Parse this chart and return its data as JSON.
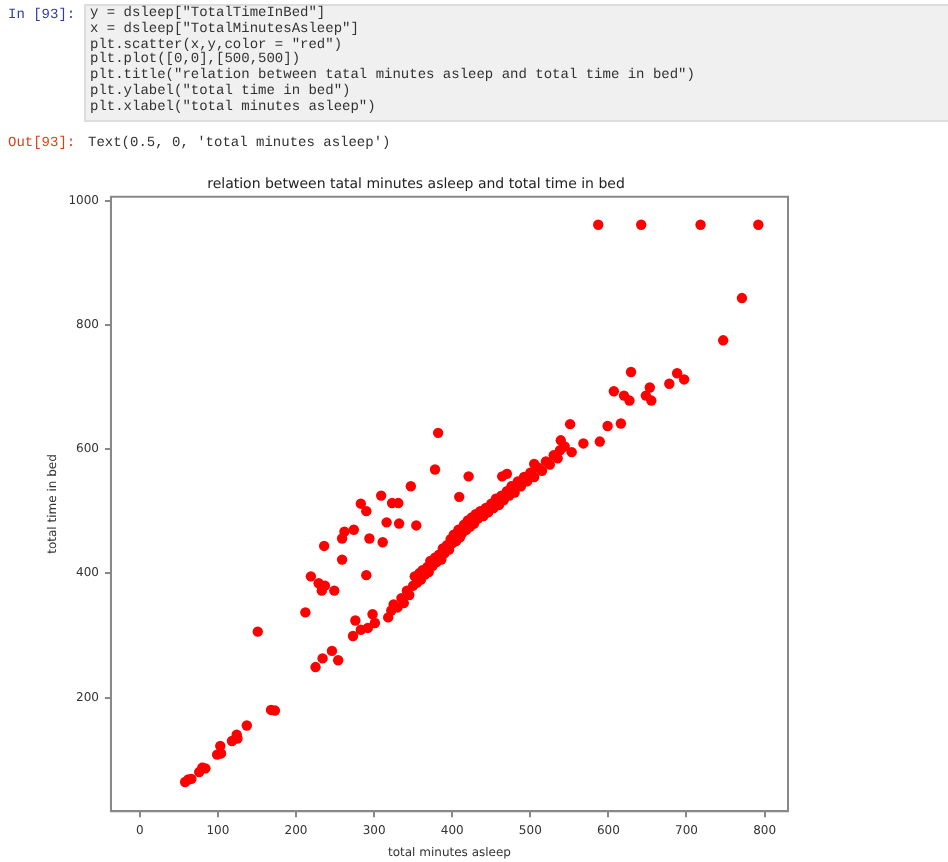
{
  "chart_data": {
    "type": "scatter",
    "title": "relation between tatal minutes asleep and total time in bed",
    "xlabel": "total minutes asleep",
    "ylabel": "total time in bed",
    "annotations": [
      "In [93]:",
      "y = dsleep[\"TotalTimeInBed\"]",
      "x = dsleep[\"TotalMinutesAsleep\"]",
      "plt.scatter(x,y,color = \"red\")",
      "plt.plot([0,0],[500,500])",
      "plt.title(\"relation between tatal minutes asleep and total time in bed\")",
      "plt.ylabel(\"total time in bed\")",
      "plt.xlabel(\"total minutes asleep\")",
      "Out[93]:",
      "Text(0.5, 0, 'total minutes asleep')"
    ],
    "series": [
      {
        "color": "#ff0000",
        "x": [
          587,
          642,
          718,
          792,
          771,
          747,
          629,
          607,
          620,
          627,
          653,
          648,
          655,
          678,
          688,
          697,
          599,
          616,
          589,
          551,
          568,
          539,
          553,
          544,
          505,
          421,
          409,
          382,
          378,
          347,
          283,
          290,
          309,
          323,
          331,
          316,
          332,
          354,
          294,
          311,
          274,
          262,
          259,
          236,
          259,
          219,
          229,
          237,
          233,
          249,
          290,
          212,
          151,
          273,
          276,
          283,
          292,
          301,
          298,
          225,
          234,
          246,
          254,
          168,
          173,
          137,
          124,
          118,
          125,
          103,
          104,
          99,
          80,
          76,
          84,
          62,
          58,
          66,
          318,
          322,
          325,
          330,
          335,
          338,
          342,
          345,
          350,
          352,
          355,
          358,
          360,
          362,
          365,
          368,
          370,
          372,
          375,
          378,
          380,
          383,
          386,
          388,
          390,
          393,
          396,
          398,
          400,
          402,
          405,
          408,
          410,
          413,
          415,
          418,
          420,
          423,
          425,
          428,
          430,
          433,
          436,
          440,
          443,
          446,
          450,
          453,
          456,
          460,
          463,
          466,
          470,
          473,
          476,
          480,
          484,
          488,
          492,
          496,
          500,
          505,
          510,
          515,
          520,
          525,
          530,
          535,
          538,
          464,
          470
        ],
        "values": [
          961,
          961,
          961,
          961,
          843,
          775,
          724,
          693,
          686,
          678,
          699,
          686,
          678,
          705,
          722,
          712,
          637,
          641,
          612,
          640,
          609,
          614,
          595,
          604,
          576,
          556,
          523,
          626,
          567,
          540,
          512,
          500,
          525,
          513,
          513,
          482,
          480,
          477,
          456,
          450,
          470,
          467,
          456,
          444,
          422,
          395,
          384,
          380,
          372,
          372,
          397,
          337,
          306,
          299,
          324,
          309,
          312,
          320,
          334,
          249,
          263,
          275,
          260,
          180,
          179,
          155,
          140,
          130,
          134,
          122,
          110,
          108,
          87,
          80,
          86,
          68,
          64,
          69,
          329,
          340,
          350,
          345,
          360,
          352,
          372,
          365,
          380,
          395,
          385,
          400,
          390,
          405,
          398,
          410,
          402,
          420,
          412,
          425,
          418,
          430,
          422,
          440,
          432,
          445,
          438,
          455,
          448,
          462,
          452,
          470,
          458,
          465,
          478,
          470,
          485,
          475,
          490,
          480,
          495,
          488,
          500,
          492,
          505,
          498,
          512,
          505,
          520,
          510,
          525,
          518,
          532,
          525,
          540,
          530,
          548,
          540,
          555,
          548,
          562,
          555,
          570,
          565,
          580,
          575,
          590,
          585,
          598,
          556,
          560
        ]
      }
    ],
    "xlim": [
      -37,
      830
    ],
    "ylim": [
      17,
      1006
    ],
    "xticks": [
      0,
      100,
      200,
      300,
      400,
      500,
      600,
      700,
      800
    ],
    "yticks": [
      200,
      400,
      600,
      800,
      1000
    ],
    "marker": "circle",
    "grid": false,
    "legend": false
  }
}
